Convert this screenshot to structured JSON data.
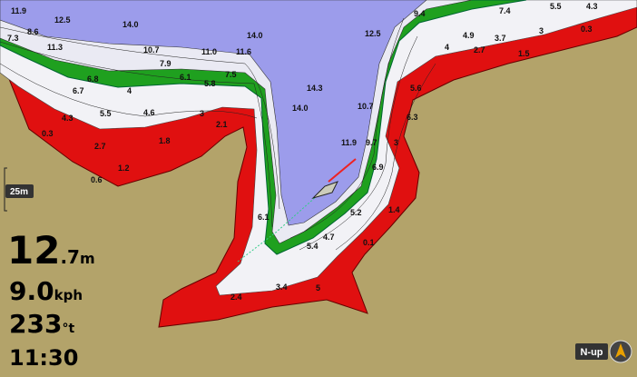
{
  "scale": "25m",
  "readouts": {
    "depth": {
      "whole": "12",
      "decimal": ".7",
      "unit": "m"
    },
    "speed": {
      "whole": "9.0",
      "unit": "kph"
    },
    "heading": {
      "whole": "233",
      "unit": "°t"
    },
    "time": "11:30"
  },
  "orientation": "N-up",
  "depth_labels": [
    "11.9",
    "12.5",
    "14.0",
    "14.0",
    "10.7",
    "11.0",
    "11.6",
    "7.9",
    "8.6",
    "7.3",
    "11.3",
    "6.8",
    "6.1",
    "5.8",
    "7.5",
    "6.7",
    "4",
    "5.5",
    "4.3",
    "4.6",
    "3",
    "2.1",
    "0.3",
    "2.7",
    "1.8",
    "1.2",
    "0.6",
    "14.3",
    "14.0",
    "12.5",
    "9.4",
    "7.4",
    "5.5",
    "4.3",
    "4.9",
    "3.7",
    "4",
    "3",
    "2.7",
    "1.5",
    "0.3",
    "10.7",
    "11.9",
    "9.7",
    "6.3",
    "5.6",
    "3",
    "6.9",
    "5.2",
    "1.4",
    "0.1",
    "6.1",
    "5.4",
    "4.7",
    "3.4",
    "5",
    "2.4"
  ]
}
